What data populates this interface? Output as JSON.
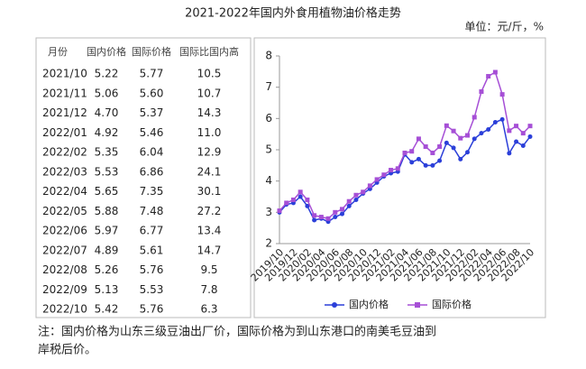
{
  "title": "2021-2022年国内外食用植物油价格走势",
  "unit": "单位：元/斤，%",
  "table": {
    "columns": [
      "月份",
      "国内价格",
      "国际价格",
      "国际比国内高"
    ],
    "rows": [
      [
        "2021/10",
        "5.22",
        "5.77",
        "10.5"
      ],
      [
        "2021/11",
        "5.06",
        "5.60",
        "10.7"
      ],
      [
        "2021/12",
        "4.70",
        "5.37",
        "14.3"
      ],
      [
        "2022/01",
        "4.92",
        "5.46",
        "11.0"
      ],
      [
        "2022/02",
        "5.35",
        "6.04",
        "12.9"
      ],
      [
        "2022/03",
        "5.53",
        "6.86",
        "24.1"
      ],
      [
        "2022/04",
        "5.65",
        "7.35",
        "30.1"
      ],
      [
        "2022/05",
        "5.88",
        "7.48",
        "27.2"
      ],
      [
        "2022/06",
        "5.97",
        "6.77",
        "13.4"
      ],
      [
        "2022/07",
        "4.89",
        "5.61",
        "14.7"
      ],
      [
        "2022/08",
        "5.26",
        "5.76",
        "9.5"
      ],
      [
        "2022/09",
        "5.13",
        "5.53",
        "7.8"
      ],
      [
        "2022/10",
        "5.42",
        "5.76",
        "6.3"
      ]
    ]
  },
  "chart_data": {
    "type": "line",
    "categories": [
      "2019/10",
      null,
      "2019/12",
      null,
      "2020/02",
      null,
      "2020/04",
      null,
      "2020/06",
      null,
      "2020/08",
      null,
      "2020/10",
      null,
      "2020/12",
      null,
      "2021/02",
      null,
      "2021/04",
      null,
      "2021/06",
      null,
      "2021/08",
      null,
      "2021/10",
      null,
      "2021/12",
      null,
      "2022/02",
      null,
      "2022/04",
      null,
      "2022/06",
      null,
      "2022/08",
      null,
      "2022/10"
    ],
    "series": [
      {
        "name": "国内价格",
        "color": "#2b3fd9",
        "marker": "circle",
        "values": [
          3.0,
          3.25,
          3.3,
          3.5,
          3.2,
          2.75,
          2.8,
          2.7,
          2.85,
          2.95,
          3.2,
          3.4,
          3.6,
          3.75,
          3.95,
          4.15,
          4.25,
          4.3,
          4.85,
          4.6,
          4.7,
          4.5,
          4.5,
          4.65,
          5.22,
          5.06,
          4.7,
          4.92,
          5.35,
          5.53,
          5.65,
          5.88,
          5.97,
          4.89,
          5.26,
          5.13,
          5.42
        ]
      },
      {
        "name": "国际价格",
        "color": "#a64fd6",
        "marker": "square",
        "values": [
          3.05,
          3.3,
          3.4,
          3.65,
          3.4,
          2.9,
          2.85,
          2.8,
          3.0,
          3.1,
          3.35,
          3.55,
          3.65,
          3.85,
          4.05,
          4.2,
          4.35,
          4.4,
          4.9,
          4.95,
          5.35,
          5.1,
          4.9,
          5.1,
          5.77,
          5.6,
          5.37,
          5.46,
          6.04,
          6.86,
          7.35,
          7.48,
          6.77,
          5.61,
          5.76,
          5.53,
          5.76
        ]
      }
    ],
    "ylim": [
      2,
      8
    ],
    "yticks": [
      2,
      3,
      4,
      5,
      6,
      7,
      8
    ],
    "grid": false,
    "legend": "bottom"
  },
  "note": [
    "注：国内价格为山东三级豆油出厂价，国际价格为到山东港口的南美毛豆油到",
    "岸税后价。"
  ]
}
